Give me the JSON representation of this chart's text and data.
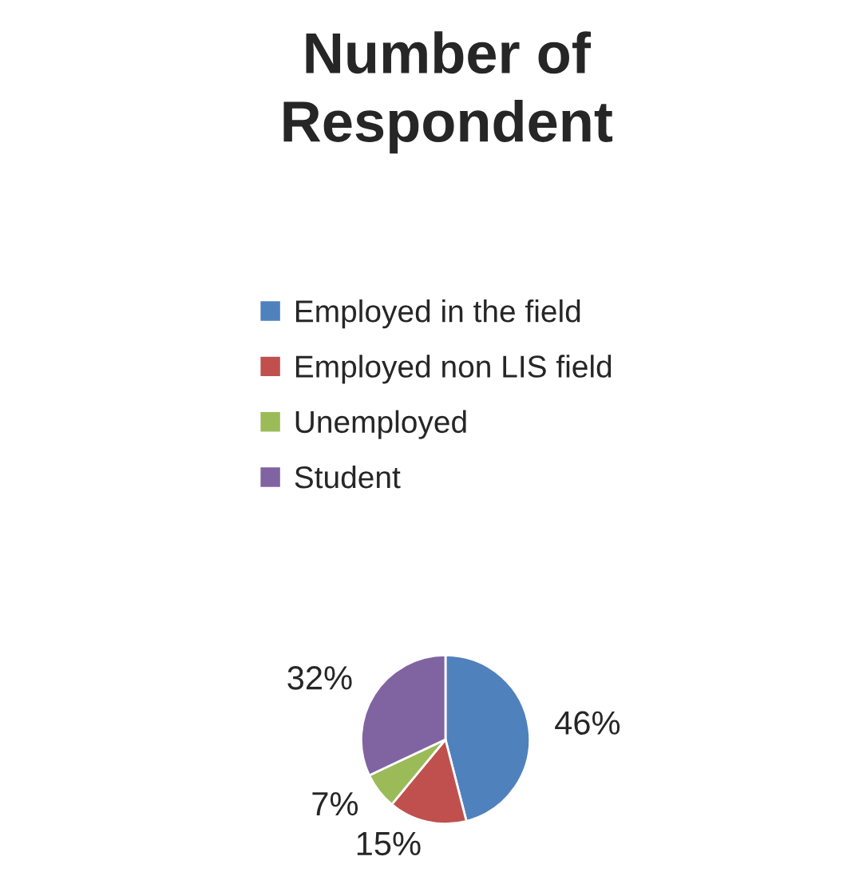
{
  "chart_data": {
    "type": "pie",
    "title": "Number of Respondent",
    "categories": [
      "Employed in the field",
      "Employed non LIS field",
      "Unemployed",
      "Student"
    ],
    "values": [
      46,
      15,
      7,
      32
    ],
    "colors": [
      "#4f81bd",
      "#c0504d",
      "#9bbb59",
      "#8064a2"
    ],
    "value_labels": [
      "46%",
      "15%",
      "7%",
      "32%"
    ],
    "legend": "top"
  }
}
